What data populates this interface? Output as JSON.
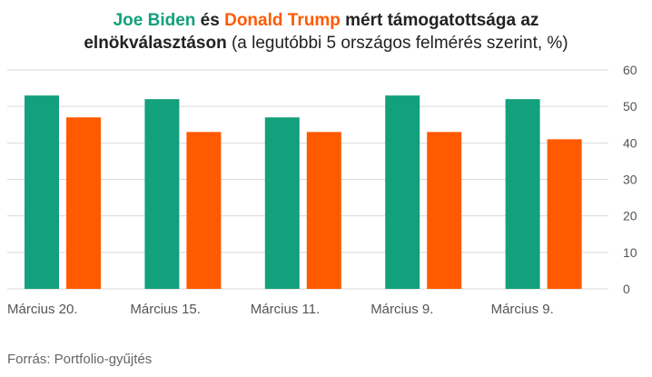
{
  "title": {
    "line1_biden": "Joe Biden",
    "line1_and": " és ",
    "line1_trump": "Donald Trump",
    "line1_rest": " mért támogatottsága az",
    "line2_bold": "elnökválasztáson",
    "line2_normal": " (a legutóbbi 5 országos felmérés szerint, %)"
  },
  "source": "Forrás: Portfolio-gyűjtés",
  "colors": {
    "biden": "#13a07d",
    "trump": "#ff5a00",
    "grid": "#d9d9d9",
    "text": "#333333"
  },
  "chart_data": {
    "type": "bar",
    "categories": [
      "Március 20.",
      "Március 15.",
      "Március 11.",
      "Március 9.",
      "Március 9."
    ],
    "series": [
      {
        "name": "Joe Biden",
        "values": [
          53,
          52,
          47,
          53,
          52
        ]
      },
      {
        "name": "Donald Trump",
        "values": [
          47,
          43,
          43,
          43,
          41
        ]
      }
    ],
    "ylim": [
      0,
      60
    ],
    "yticks": [
      0,
      10,
      20,
      30,
      40,
      50,
      60
    ],
    "y_axis_side": "right",
    "grid": true,
    "legend": "in title"
  }
}
